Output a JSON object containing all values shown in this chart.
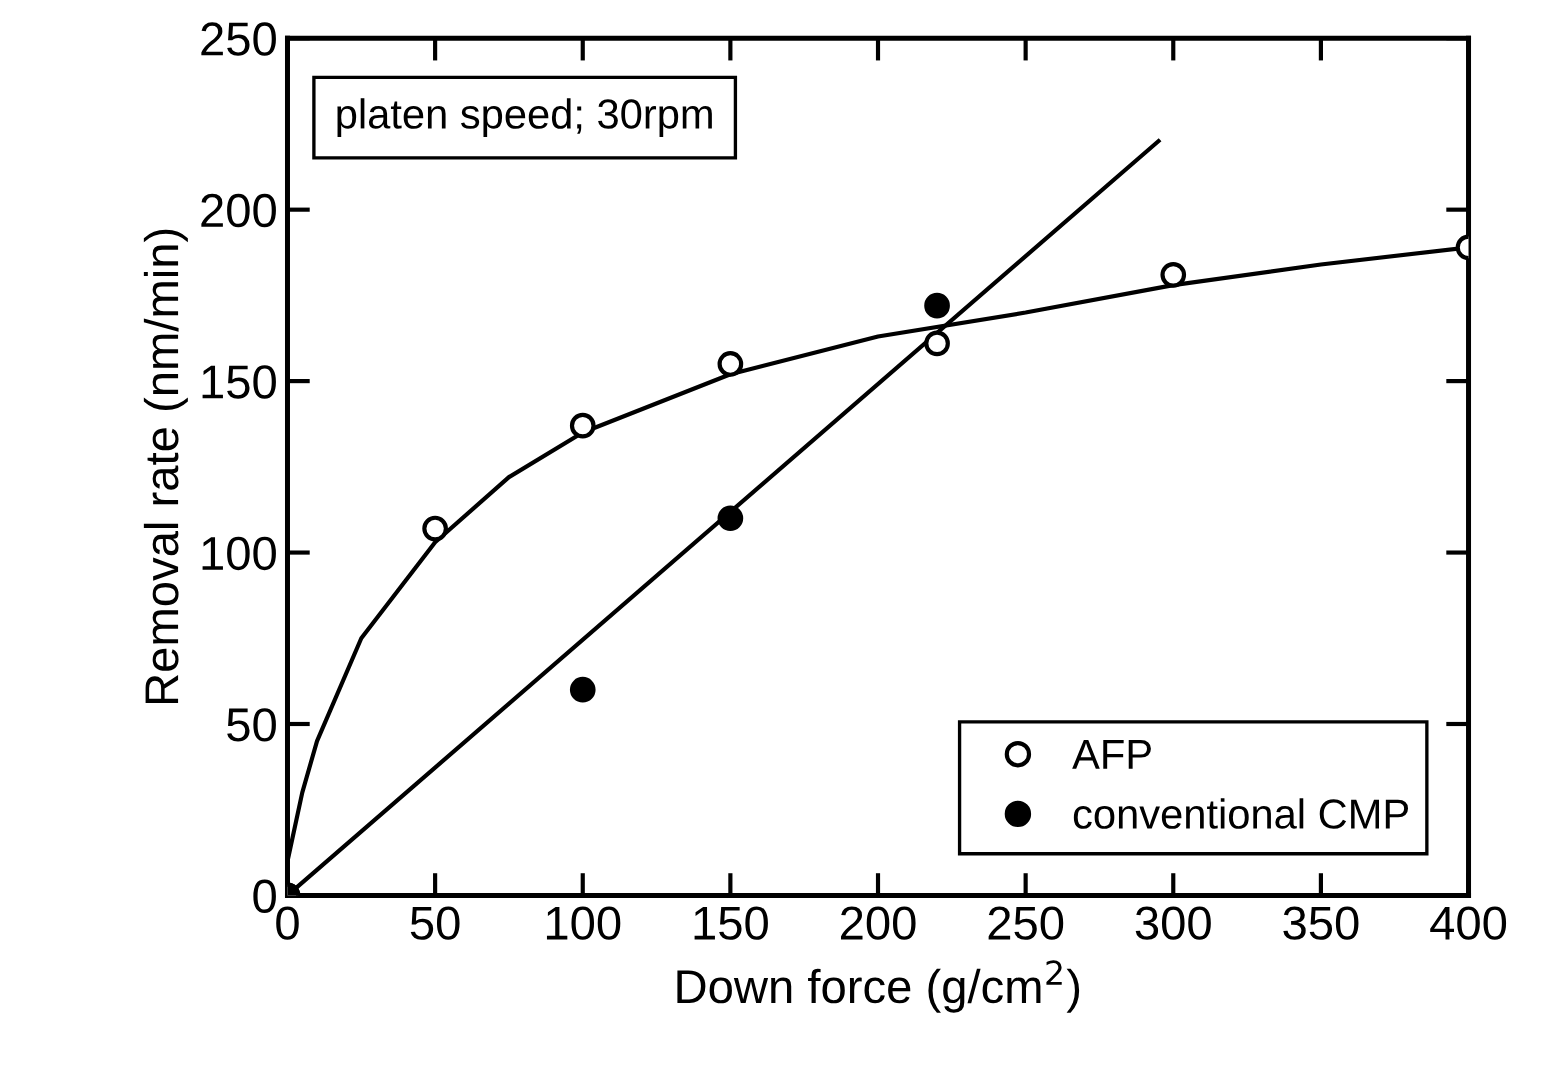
{
  "chart_data": {
    "type": "scatter",
    "xlabel": "Down force (g/cm$^{2}$)",
    "ylabel": "Removal rate (nm/min)",
    "xlim": [
      0,
      400
    ],
    "ylim": [
      0,
      250
    ],
    "xticks": [
      0,
      50,
      100,
      150,
      200,
      250,
      300,
      350,
      400
    ],
    "yticks": [
      0,
      50,
      100,
      150,
      200,
      250
    ],
    "annotations": [
      "platen speed; 30rpm"
    ],
    "legend": "bottom right",
    "grid": false,
    "series": [
      {
        "name": "AFP",
        "marker": "circle",
        "color": "#ffffff",
        "x": [
          0,
          50,
          100,
          150,
          220,
          300,
          400
        ],
        "values": [
          0,
          107,
          137,
          155,
          161,
          181,
          189
        ]
      },
      {
        "name": "conventional CMP",
        "marker": "circle",
        "color": "#000000",
        "x": [
          0,
          100,
          150,
          220
        ],
        "values": [
          0,
          60,
          110,
          172
        ]
      },
      {
        "type": "line",
        "color": "#000000",
        "x": [
          0,
          5,
          10,
          25,
          50,
          75,
          100,
          150,
          200,
          250,
          300,
          350,
          400
        ],
        "values": [
          10,
          30,
          45,
          75,
          103,
          122,
          135,
          152,
          163,
          170,
          178,
          184,
          189
        ]
      },
      {
        "type": "line",
        "color": "#000000",
        "x": [
          0,
          295
        ],
        "values": [
          0,
          220
        ]
      }
    ]
  }
}
